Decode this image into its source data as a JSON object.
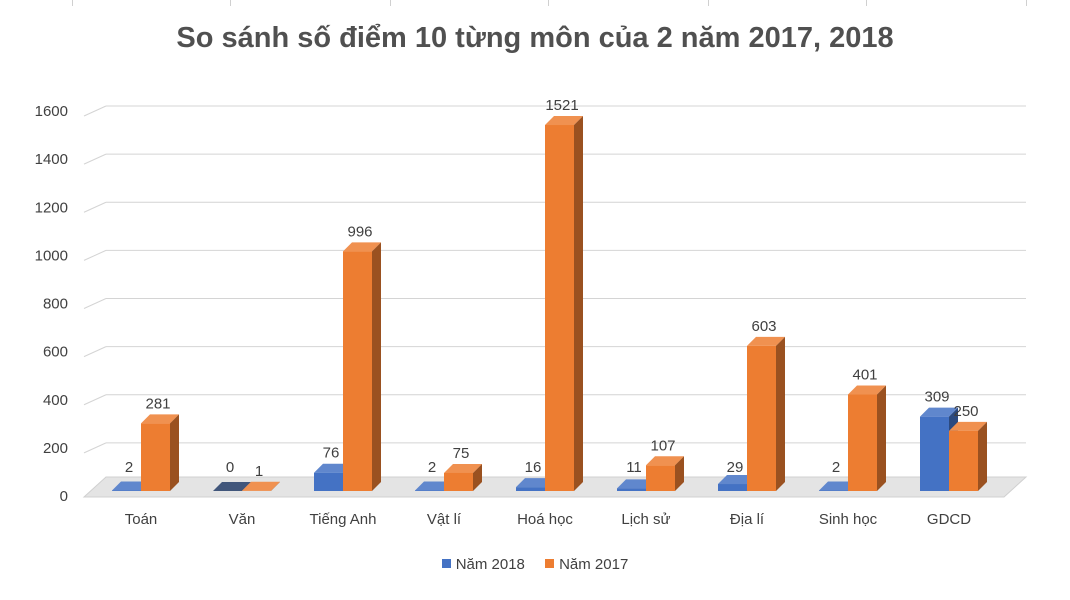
{
  "chart_data": {
    "type": "bar",
    "title": "So sánh số điểm 10 từng môn của 2 năm 2017, 2018",
    "categories": [
      "Toán",
      "Văn",
      "Tiếng Anh",
      "Vật lí",
      "Hoá học",
      "Lịch sử",
      "Địa lí",
      "Sinh học",
      "GDCD"
    ],
    "series": [
      {
        "name": "Năm 2018",
        "color": "#4472C4",
        "values": [
          2,
          0,
          76,
          2,
          16,
          11,
          29,
          2,
          309
        ]
      },
      {
        "name": "Năm 2017",
        "color": "#ED7D31",
        "values": [
          281,
          1,
          996,
          75,
          1521,
          107,
          603,
          401,
          250
        ]
      }
    ],
    "yticks": [
      0,
      200,
      400,
      600,
      800,
      1000,
      1200,
      1400,
      1600
    ],
    "ylim": [
      0,
      1600
    ],
    "xlabel": "",
    "ylabel": "",
    "grid": true,
    "legend": "bottom"
  }
}
